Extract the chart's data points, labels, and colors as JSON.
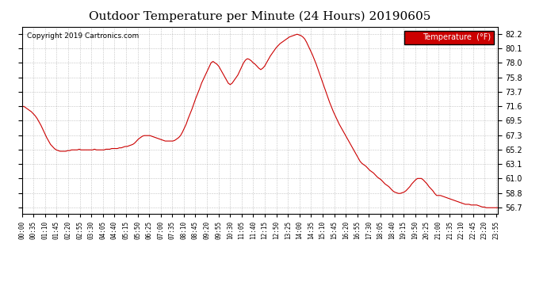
{
  "title": "Outdoor Temperature per Minute (24 Hours) 20190605",
  "copyright": "Copyright 2019 Cartronics.com",
  "legend_label": "Temperature  (°F)",
  "line_color": "#cc0000",
  "background_color": "#ffffff",
  "grid_color": "#aaaaaa",
  "yticks": [
    56.7,
    58.8,
    61.0,
    63.1,
    65.2,
    67.3,
    69.5,
    71.6,
    73.7,
    75.8,
    78.0,
    80.1,
    82.2
  ],
  "ymin": 55.8,
  "ymax": 83.3,
  "xtick_labels": [
    "00:00",
    "00:35",
    "01:10",
    "01:45",
    "02:20",
    "02:55",
    "03:30",
    "04:05",
    "04:40",
    "05:15",
    "05:50",
    "06:25",
    "07:00",
    "07:35",
    "08:10",
    "08:45",
    "09:20",
    "09:55",
    "10:30",
    "11:05",
    "11:40",
    "12:15",
    "12:50",
    "13:25",
    "14:00",
    "14:35",
    "15:10",
    "15:45",
    "16:20",
    "16:55",
    "17:30",
    "18:05",
    "18:40",
    "19:15",
    "19:50",
    "20:25",
    "21:00",
    "21:35",
    "22:10",
    "22:45",
    "23:20",
    "23:55"
  ],
  "temperature_profile": [
    71.5,
    71.6,
    71.4,
    71.2,
    71.0,
    70.8,
    70.5,
    70.2,
    69.8,
    69.3,
    68.8,
    68.2,
    67.6,
    67.0,
    66.5,
    66.0,
    65.7,
    65.4,
    65.2,
    65.1,
    65.0,
    65.0,
    65.0,
    65.0,
    65.1,
    65.1,
    65.2,
    65.2,
    65.2,
    65.2,
    65.3,
    65.2,
    65.2,
    65.2,
    65.2,
    65.2,
    65.2,
    65.2,
    65.3,
    65.2,
    65.2,
    65.2,
    65.2,
    65.2,
    65.3,
    65.3,
    65.3,
    65.4,
    65.4,
    65.4,
    65.4,
    65.5,
    65.5,
    65.6,
    65.7,
    65.7,
    65.8,
    65.9,
    66.0,
    66.2,
    66.5,
    66.8,
    67.0,
    67.2,
    67.3,
    67.3,
    67.3,
    67.3,
    67.2,
    67.1,
    67.0,
    66.9,
    66.8,
    66.7,
    66.6,
    66.5,
    66.5,
    66.5,
    66.5,
    66.5,
    66.6,
    66.8,
    67.0,
    67.3,
    67.8,
    68.4,
    69.0,
    69.8,
    70.5,
    71.2,
    72.0,
    72.8,
    73.5,
    74.2,
    75.0,
    75.6,
    76.2,
    76.8,
    77.4,
    78.0,
    78.2,
    78.0,
    77.8,
    77.5,
    77.0,
    76.5,
    76.0,
    75.5,
    75.0,
    74.8,
    75.0,
    75.4,
    75.8,
    76.2,
    76.8,
    77.4,
    78.0,
    78.4,
    78.6,
    78.5,
    78.3,
    78.0,
    77.8,
    77.5,
    77.2,
    77.0,
    77.2,
    77.5,
    78.0,
    78.5,
    79.0,
    79.4,
    79.8,
    80.2,
    80.5,
    80.8,
    81.0,
    81.2,
    81.4,
    81.6,
    81.8,
    81.9,
    82.0,
    82.1,
    82.2,
    82.1,
    82.0,
    81.8,
    81.5,
    81.0,
    80.4,
    79.8,
    79.2,
    78.5,
    77.8,
    77.0,
    76.2,
    75.4,
    74.6,
    73.8,
    73.0,
    72.2,
    71.5,
    70.8,
    70.2,
    69.6,
    69.0,
    68.5,
    68.0,
    67.5,
    67.0,
    66.5,
    66.0,
    65.5,
    65.0,
    64.5,
    64.0,
    63.5,
    63.2,
    63.0,
    62.8,
    62.5,
    62.2,
    62.0,
    61.8,
    61.5,
    61.2,
    61.0,
    60.8,
    60.5,
    60.2,
    60.0,
    59.8,
    59.5,
    59.2,
    59.0,
    58.9,
    58.8,
    58.8,
    58.9,
    59.0,
    59.2,
    59.5,
    59.8,
    60.2,
    60.5,
    60.8,
    61.0,
    61.0,
    61.0,
    60.8,
    60.5,
    60.2,
    59.8,
    59.5,
    59.2,
    58.8,
    58.5,
    58.5,
    58.5,
    58.4,
    58.3,
    58.2,
    58.1,
    58.0,
    57.9,
    57.8,
    57.7,
    57.6,
    57.5,
    57.4,
    57.3,
    57.2,
    57.2,
    57.2,
    57.1,
    57.1,
    57.1,
    57.1,
    57.0,
    56.9,
    56.8,
    56.8,
    56.7,
    56.7,
    56.7,
    56.7,
    56.7,
    56.7,
    56.7
  ]
}
